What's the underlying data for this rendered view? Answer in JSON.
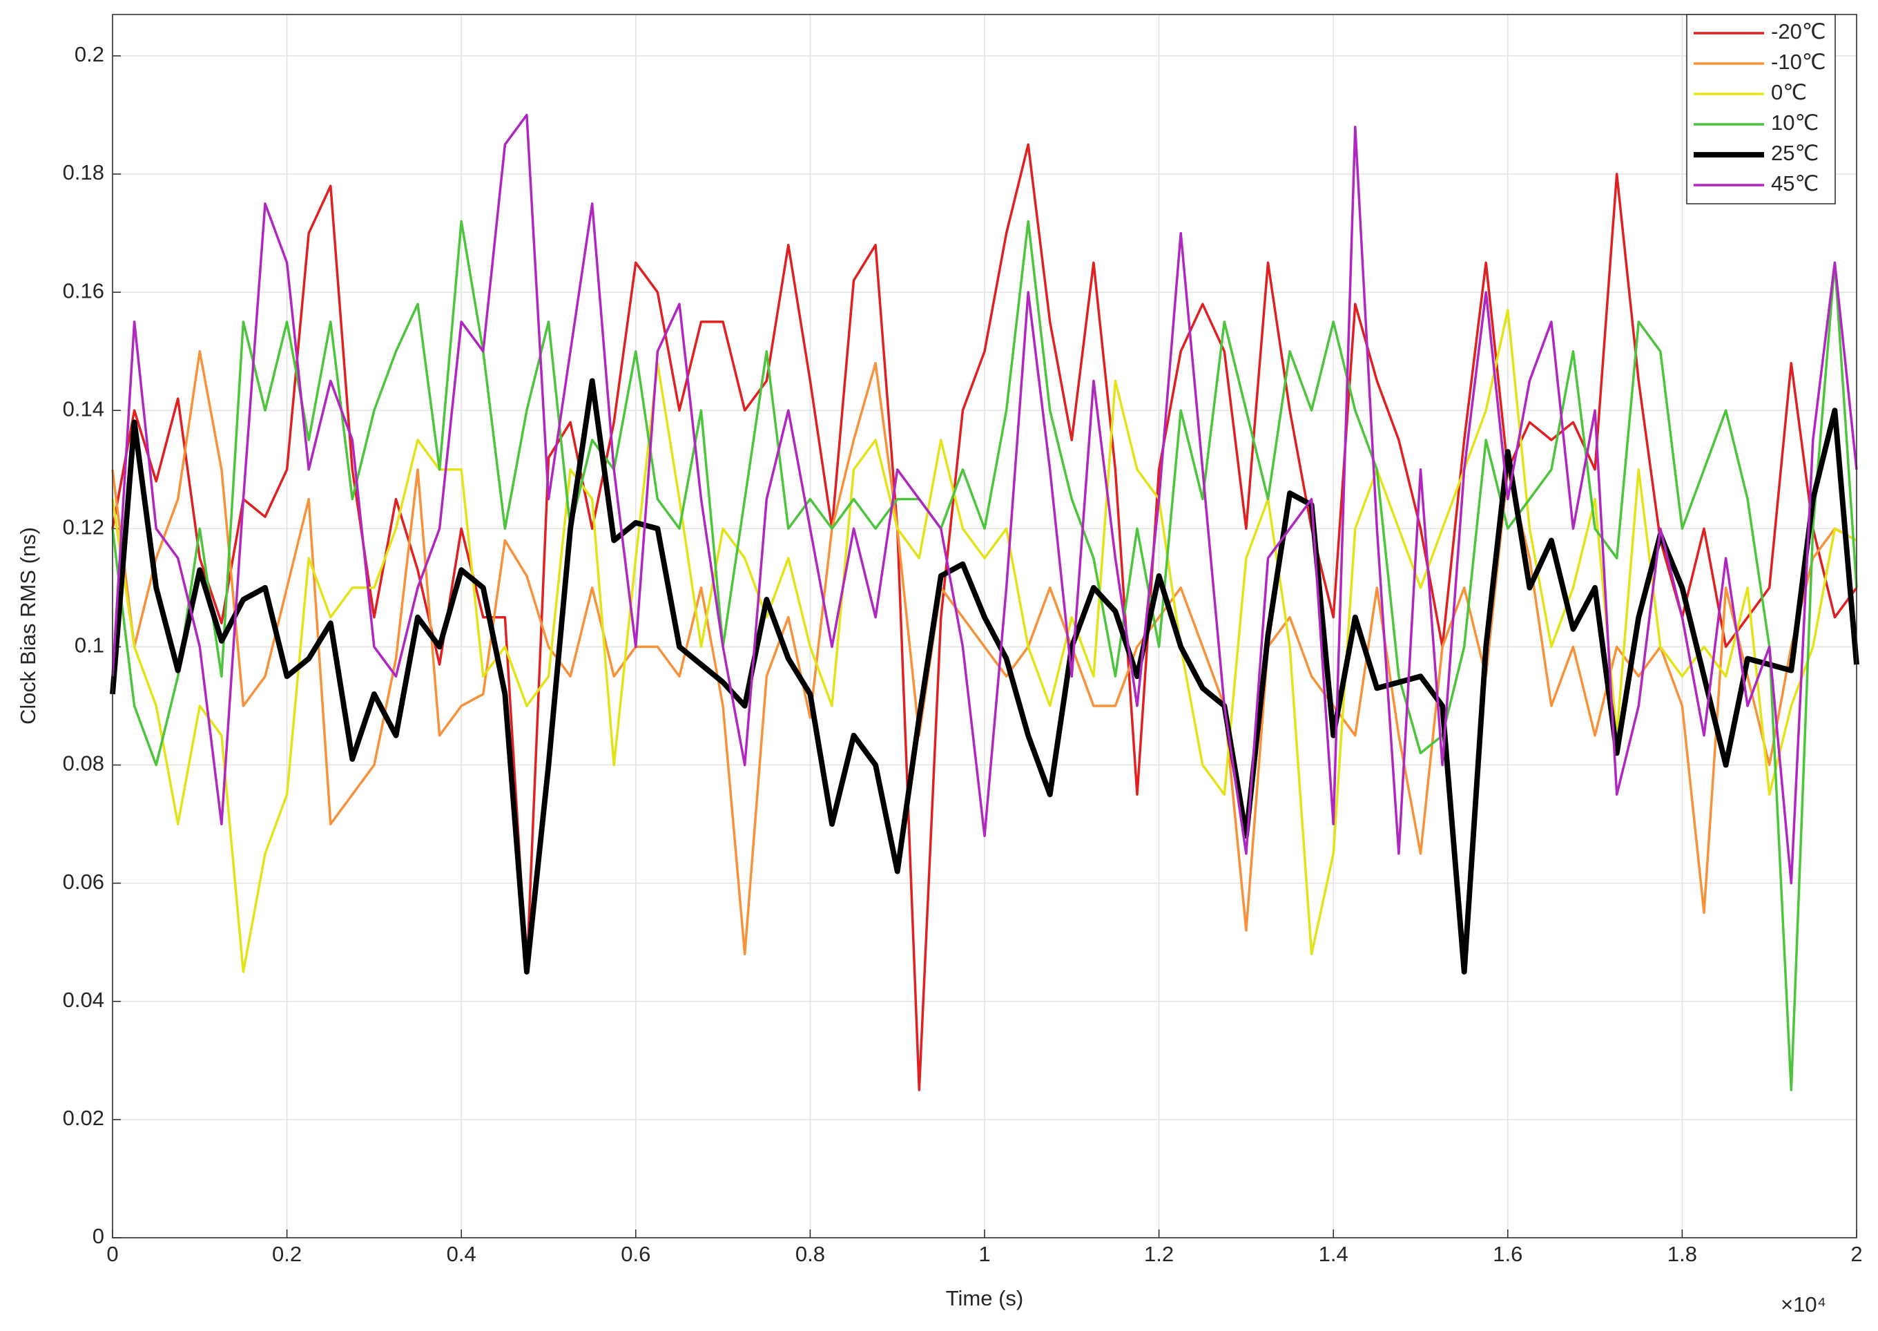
{
  "chart_data": {
    "type": "line",
    "xlabel": "Time (s)",
    "ylabel": "Clock Bias RMS (ns)",
    "x_multiplier": "×10⁴",
    "xlim": [
      0,
      20000
    ],
    "ylim": [
      0,
      0.207
    ],
    "xticks": [
      {
        "value": 0,
        "label": "0"
      },
      {
        "value": 2000,
        "label": "0.2"
      },
      {
        "value": 4000,
        "label": "0.4"
      },
      {
        "value": 6000,
        "label": "0.6"
      },
      {
        "value": 8000,
        "label": "0.8"
      },
      {
        "value": 10000,
        "label": "1"
      },
      {
        "value": 12000,
        "label": "1.2"
      },
      {
        "value": 14000,
        "label": "1.4"
      },
      {
        "value": 16000,
        "label": "1.6"
      },
      {
        "value": 18000,
        "label": "1.8"
      },
      {
        "value": 20000,
        "label": "2"
      }
    ],
    "yticks": [
      0,
      0.02,
      0.04,
      0.06,
      0.08,
      0.1,
      0.12,
      0.14,
      0.16,
      0.18,
      0.2
    ],
    "grid": true,
    "legend": "upper right",
    "x": [
      0,
      250,
      500,
      750,
      1000,
      1250,
      1500,
      1750,
      2000,
      2250,
      2500,
      2750,
      3000,
      3250,
      3500,
      3750,
      4000,
      4250,
      4500,
      4750,
      5000,
      5250,
      5500,
      5750,
      6000,
      6250,
      6500,
      6750,
      7000,
      7250,
      7500,
      7750,
      8000,
      8250,
      8500,
      8750,
      9000,
      9250,
      9500,
      9750,
      10000,
      10250,
      10500,
      10750,
      11000,
      11250,
      11500,
      11750,
      12000,
      12250,
      12500,
      12750,
      13000,
      13250,
      13500,
      13750,
      14000,
      14250,
      14500,
      14750,
      15000,
      15250,
      15500,
      15750,
      16000,
      16250,
      16500,
      16750,
      17000,
      17250,
      17500,
      17750,
      18000,
      18250,
      18500,
      18750,
      19000,
      19250,
      19500,
      19750,
      20000
    ],
    "series": [
      {
        "name": "-20℃",
        "color": "#e02020",
        "linewidth": 2,
        "values": [
          0.12,
          0.14,
          0.128,
          0.142,
          0.115,
          0.104,
          0.125,
          0.122,
          0.13,
          0.17,
          0.178,
          0.13,
          0.105,
          0.125,
          0.113,
          0.097,
          0.12,
          0.105,
          0.105,
          0.045,
          0.132,
          0.138,
          0.12,
          0.138,
          0.165,
          0.16,
          0.14,
          0.155,
          0.155,
          0.14,
          0.145,
          0.168,
          0.145,
          0.12,
          0.162,
          0.168,
          0.12,
          0.025,
          0.105,
          0.14,
          0.15,
          0.17,
          0.185,
          0.155,
          0.135,
          0.165,
          0.13,
          0.075,
          0.13,
          0.15,
          0.158,
          0.15,
          0.12,
          0.165,
          0.14,
          0.12,
          0.105,
          0.158,
          0.145,
          0.135,
          0.12,
          0.1,
          0.135,
          0.165,
          0.13,
          0.138,
          0.135,
          0.138,
          0.13,
          0.18,
          0.145,
          0.118,
          0.105,
          0.12,
          0.1,
          0.105,
          0.11,
          0.148,
          0.12,
          0.105,
          0.11
        ]
      },
      {
        "name": "-10℃",
        "color": "#f7923a",
        "linewidth": 2,
        "values": [
          0.13,
          0.1,
          0.115,
          0.125,
          0.15,
          0.13,
          0.09,
          0.095,
          0.11,
          0.125,
          0.07,
          0.075,
          0.08,
          0.098,
          0.13,
          0.085,
          0.09,
          0.092,
          0.118,
          0.112,
          0.1,
          0.095,
          0.11,
          0.095,
          0.1,
          0.1,
          0.095,
          0.11,
          0.09,
          0.048,
          0.095,
          0.105,
          0.088,
          0.12,
          0.135,
          0.148,
          0.12,
          0.085,
          0.11,
          0.105,
          0.1,
          0.095,
          0.1,
          0.11,
          0.1,
          0.09,
          0.09,
          0.1,
          0.105,
          0.11,
          0.1,
          0.09,
          0.052,
          0.1,
          0.105,
          0.095,
          0.09,
          0.085,
          0.11,
          0.085,
          0.065,
          0.1,
          0.11,
          0.095,
          0.13,
          0.115,
          0.09,
          0.1,
          0.085,
          0.1,
          0.095,
          0.1,
          0.09,
          0.055,
          0.11,
          0.095,
          0.08,
          0.1,
          0.115,
          0.12,
          0.118
        ]
      },
      {
        "name": "0℃",
        "color": "#e3e31a",
        "linewidth": 2,
        "values": [
          0.125,
          0.1,
          0.09,
          0.07,
          0.09,
          0.085,
          0.045,
          0.065,
          0.075,
          0.115,
          0.105,
          0.11,
          0.11,
          0.12,
          0.135,
          0.13,
          0.13,
          0.095,
          0.1,
          0.09,
          0.095,
          0.13,
          0.125,
          0.08,
          0.115,
          0.148,
          0.125,
          0.1,
          0.12,
          0.115,
          0.105,
          0.115,
          0.1,
          0.09,
          0.13,
          0.135,
          0.12,
          0.115,
          0.135,
          0.12,
          0.115,
          0.12,
          0.1,
          0.09,
          0.105,
          0.095,
          0.145,
          0.13,
          0.125,
          0.1,
          0.08,
          0.075,
          0.115,
          0.125,
          0.1,
          0.048,
          0.065,
          0.12,
          0.13,
          0.12,
          0.11,
          0.12,
          0.13,
          0.14,
          0.157,
          0.12,
          0.1,
          0.11,
          0.125,
          0.085,
          0.13,
          0.1,
          0.095,
          0.1,
          0.095,
          0.11,
          0.075,
          0.09,
          0.1,
          0.12,
          0.118
        ]
      },
      {
        "name": "10℃",
        "color": "#4cc43c",
        "linewidth": 2,
        "values": [
          0.12,
          0.09,
          0.08,
          0.095,
          0.12,
          0.095,
          0.155,
          0.14,
          0.155,
          0.135,
          0.155,
          0.125,
          0.14,
          0.15,
          0.158,
          0.13,
          0.172,
          0.15,
          0.12,
          0.14,
          0.155,
          0.12,
          0.135,
          0.13,
          0.15,
          0.125,
          0.12,
          0.14,
          0.1,
          0.125,
          0.15,
          0.12,
          0.125,
          0.12,
          0.125,
          0.12,
          0.125,
          0.125,
          0.12,
          0.13,
          0.12,
          0.14,
          0.172,
          0.14,
          0.125,
          0.115,
          0.095,
          0.12,
          0.1,
          0.14,
          0.125,
          0.155,
          0.14,
          0.125,
          0.15,
          0.14,
          0.155,
          0.14,
          0.13,
          0.095,
          0.082,
          0.085,
          0.1,
          0.135,
          0.12,
          0.125,
          0.13,
          0.15,
          0.12,
          0.115,
          0.155,
          0.15,
          0.12,
          0.13,
          0.14,
          0.125,
          0.1,
          0.025,
          0.12,
          0.165,
          0.11
        ]
      },
      {
        "name": "25℃",
        "color": "#000000",
        "linewidth": 4.5,
        "values": [
          0.092,
          0.138,
          0.11,
          0.096,
          0.113,
          0.101,
          0.108,
          0.11,
          0.095,
          0.098,
          0.104,
          0.081,
          0.092,
          0.085,
          0.105,
          0.1,
          0.113,
          0.11,
          0.092,
          0.045,
          0.08,
          0.12,
          0.145,
          0.118,
          0.121,
          0.12,
          0.1,
          0.097,
          0.094,
          0.09,
          0.108,
          0.098,
          0.092,
          0.07,
          0.085,
          0.08,
          0.062,
          0.088,
          0.112,
          0.114,
          0.105,
          0.098,
          0.085,
          0.075,
          0.1,
          0.11,
          0.106,
          0.095,
          0.112,
          0.1,
          0.093,
          0.09,
          0.068,
          0.102,
          0.126,
          0.124,
          0.085,
          0.105,
          0.093,
          0.094,
          0.095,
          0.09,
          0.045,
          0.1,
          0.133,
          0.11,
          0.118,
          0.103,
          0.11,
          0.082,
          0.105,
          0.119,
          0.11,
          0.095,
          0.08,
          0.098,
          0.097,
          0.096,
          0.125,
          0.14,
          0.097
        ]
      },
      {
        "name": "45℃",
        "color": "#b026c0",
        "linewidth": 2,
        "values": [
          0.095,
          0.155,
          0.12,
          0.115,
          0.1,
          0.07,
          0.125,
          0.175,
          0.165,
          0.13,
          0.145,
          0.135,
          0.1,
          0.095,
          0.11,
          0.12,
          0.155,
          0.15,
          0.185,
          0.19,
          0.125,
          0.15,
          0.175,
          0.13,
          0.1,
          0.15,
          0.158,
          0.125,
          0.1,
          0.08,
          0.125,
          0.14,
          0.12,
          0.1,
          0.12,
          0.105,
          0.13,
          0.125,
          0.12,
          0.1,
          0.068,
          0.11,
          0.16,
          0.13,
          0.095,
          0.145,
          0.115,
          0.09,
          0.125,
          0.17,
          0.13,
          0.09,
          0.065,
          0.115,
          0.12,
          0.125,
          0.07,
          0.188,
          0.12,
          0.065,
          0.13,
          0.08,
          0.13,
          0.16,
          0.125,
          0.145,
          0.155,
          0.12,
          0.14,
          0.075,
          0.09,
          0.12,
          0.105,
          0.085,
          0.115,
          0.09,
          0.1,
          0.06,
          0.135,
          0.165,
          0.13
        ]
      }
    ]
  }
}
